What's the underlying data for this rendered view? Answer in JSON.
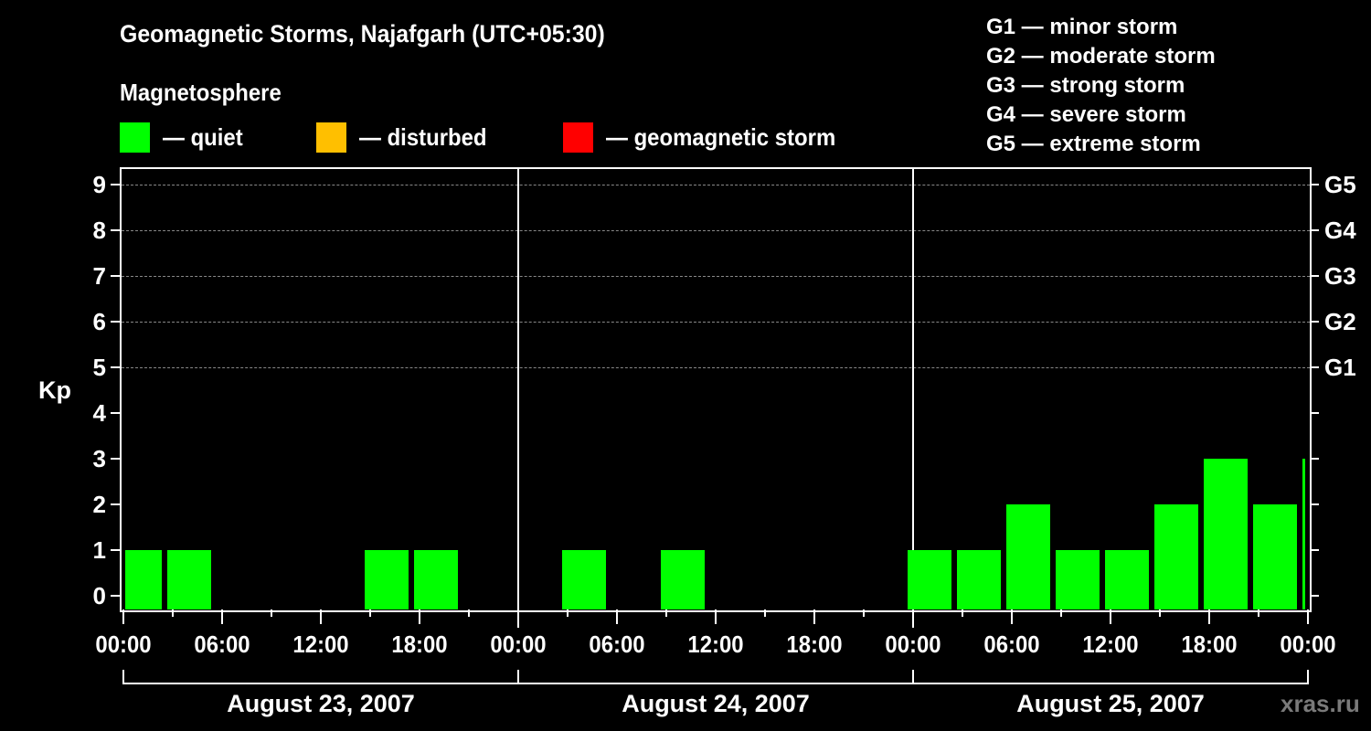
{
  "header": {
    "title": "Geomagnetic Storms, Najafgarh (UTC+05:30)",
    "subtitle": "Magnetosphere"
  },
  "legend": [
    {
      "label": "— quiet",
      "color": "#00ff00"
    },
    {
      "label": "— disturbed",
      "color": "#ffbf00"
    },
    {
      "label": "— geomagnetic storm",
      "color": "#ff0000"
    }
  ],
  "storm_scale": [
    "G1 — minor storm",
    "G2 — moderate storm",
    "G3 — strong storm",
    "G4 — severe storm",
    "G5 — extreme storm"
  ],
  "watermark": "xras.ru",
  "chart_data": {
    "type": "bar",
    "title": "Geomagnetic Storms, Najafgarh (UTC+05:30)",
    "ylabel": "Kp",
    "ylim": [
      0,
      9
    ],
    "yticks": [
      "0",
      "1",
      "2",
      "3",
      "4",
      "5",
      "6",
      "7",
      "8",
      "9"
    ],
    "right_ticks": [
      {
        "kp": 5,
        "label": "G1"
      },
      {
        "kp": 6,
        "label": "G2"
      },
      {
        "kp": 7,
        "label": "G3"
      },
      {
        "kp": 8,
        "label": "G4"
      },
      {
        "kp": 9,
        "label": "G5"
      }
    ],
    "grid": "dashed at Kp 5-9",
    "xticks": [
      "00:00",
      "06:00",
      "12:00",
      "18:00",
      "00:00",
      "06:00",
      "12:00",
      "18:00",
      "00:00",
      "06:00",
      "12:00",
      "18:00",
      "00:00"
    ],
    "days": [
      "August 23, 2007",
      "August 24, 2007",
      "August 25, 2007"
    ],
    "bin_hours": 3,
    "series": [
      {
        "name": "Kp (quiet)",
        "color": "#00ff00",
        "bars": [
          {
            "start": "Aug 23 00:00",
            "end": "Aug 23 02:30",
            "kp": 1
          },
          {
            "start": "Aug 23 02:30",
            "end": "Aug 23 05:30",
            "kp": 1
          },
          {
            "start": "Aug 23 14:30",
            "end": "Aug 23 17:30",
            "kp": 1
          },
          {
            "start": "Aug 23 17:30",
            "end": "Aug 23 20:30",
            "kp": 1
          },
          {
            "start": "Aug 24 02:30",
            "end": "Aug 24 05:30",
            "kp": 1
          },
          {
            "start": "Aug 24 08:30",
            "end": "Aug 24 11:30",
            "kp": 1
          },
          {
            "start": "Aug 24 23:30",
            "end": "Aug 25 02:30",
            "kp": 1
          },
          {
            "start": "Aug 25 02:30",
            "end": "Aug 25 05:30",
            "kp": 1
          },
          {
            "start": "Aug 25 05:30",
            "end": "Aug 25 08:30",
            "kp": 2
          },
          {
            "start": "Aug 25 08:30",
            "end": "Aug 25 11:30",
            "kp": 1
          },
          {
            "start": "Aug 25 11:30",
            "end": "Aug 25 14:30",
            "kp": 1
          },
          {
            "start": "Aug 25 14:30",
            "end": "Aug 25 17:30",
            "kp": 2
          },
          {
            "start": "Aug 25 17:30",
            "end": "Aug 25 20:30",
            "kp": 3
          },
          {
            "start": "Aug 25 20:30",
            "end": "Aug 25 23:30",
            "kp": 2
          },
          {
            "start": "Aug 25 23:30",
            "end": "Aug 26 00:00",
            "kp": 3
          }
        ]
      }
    ]
  }
}
